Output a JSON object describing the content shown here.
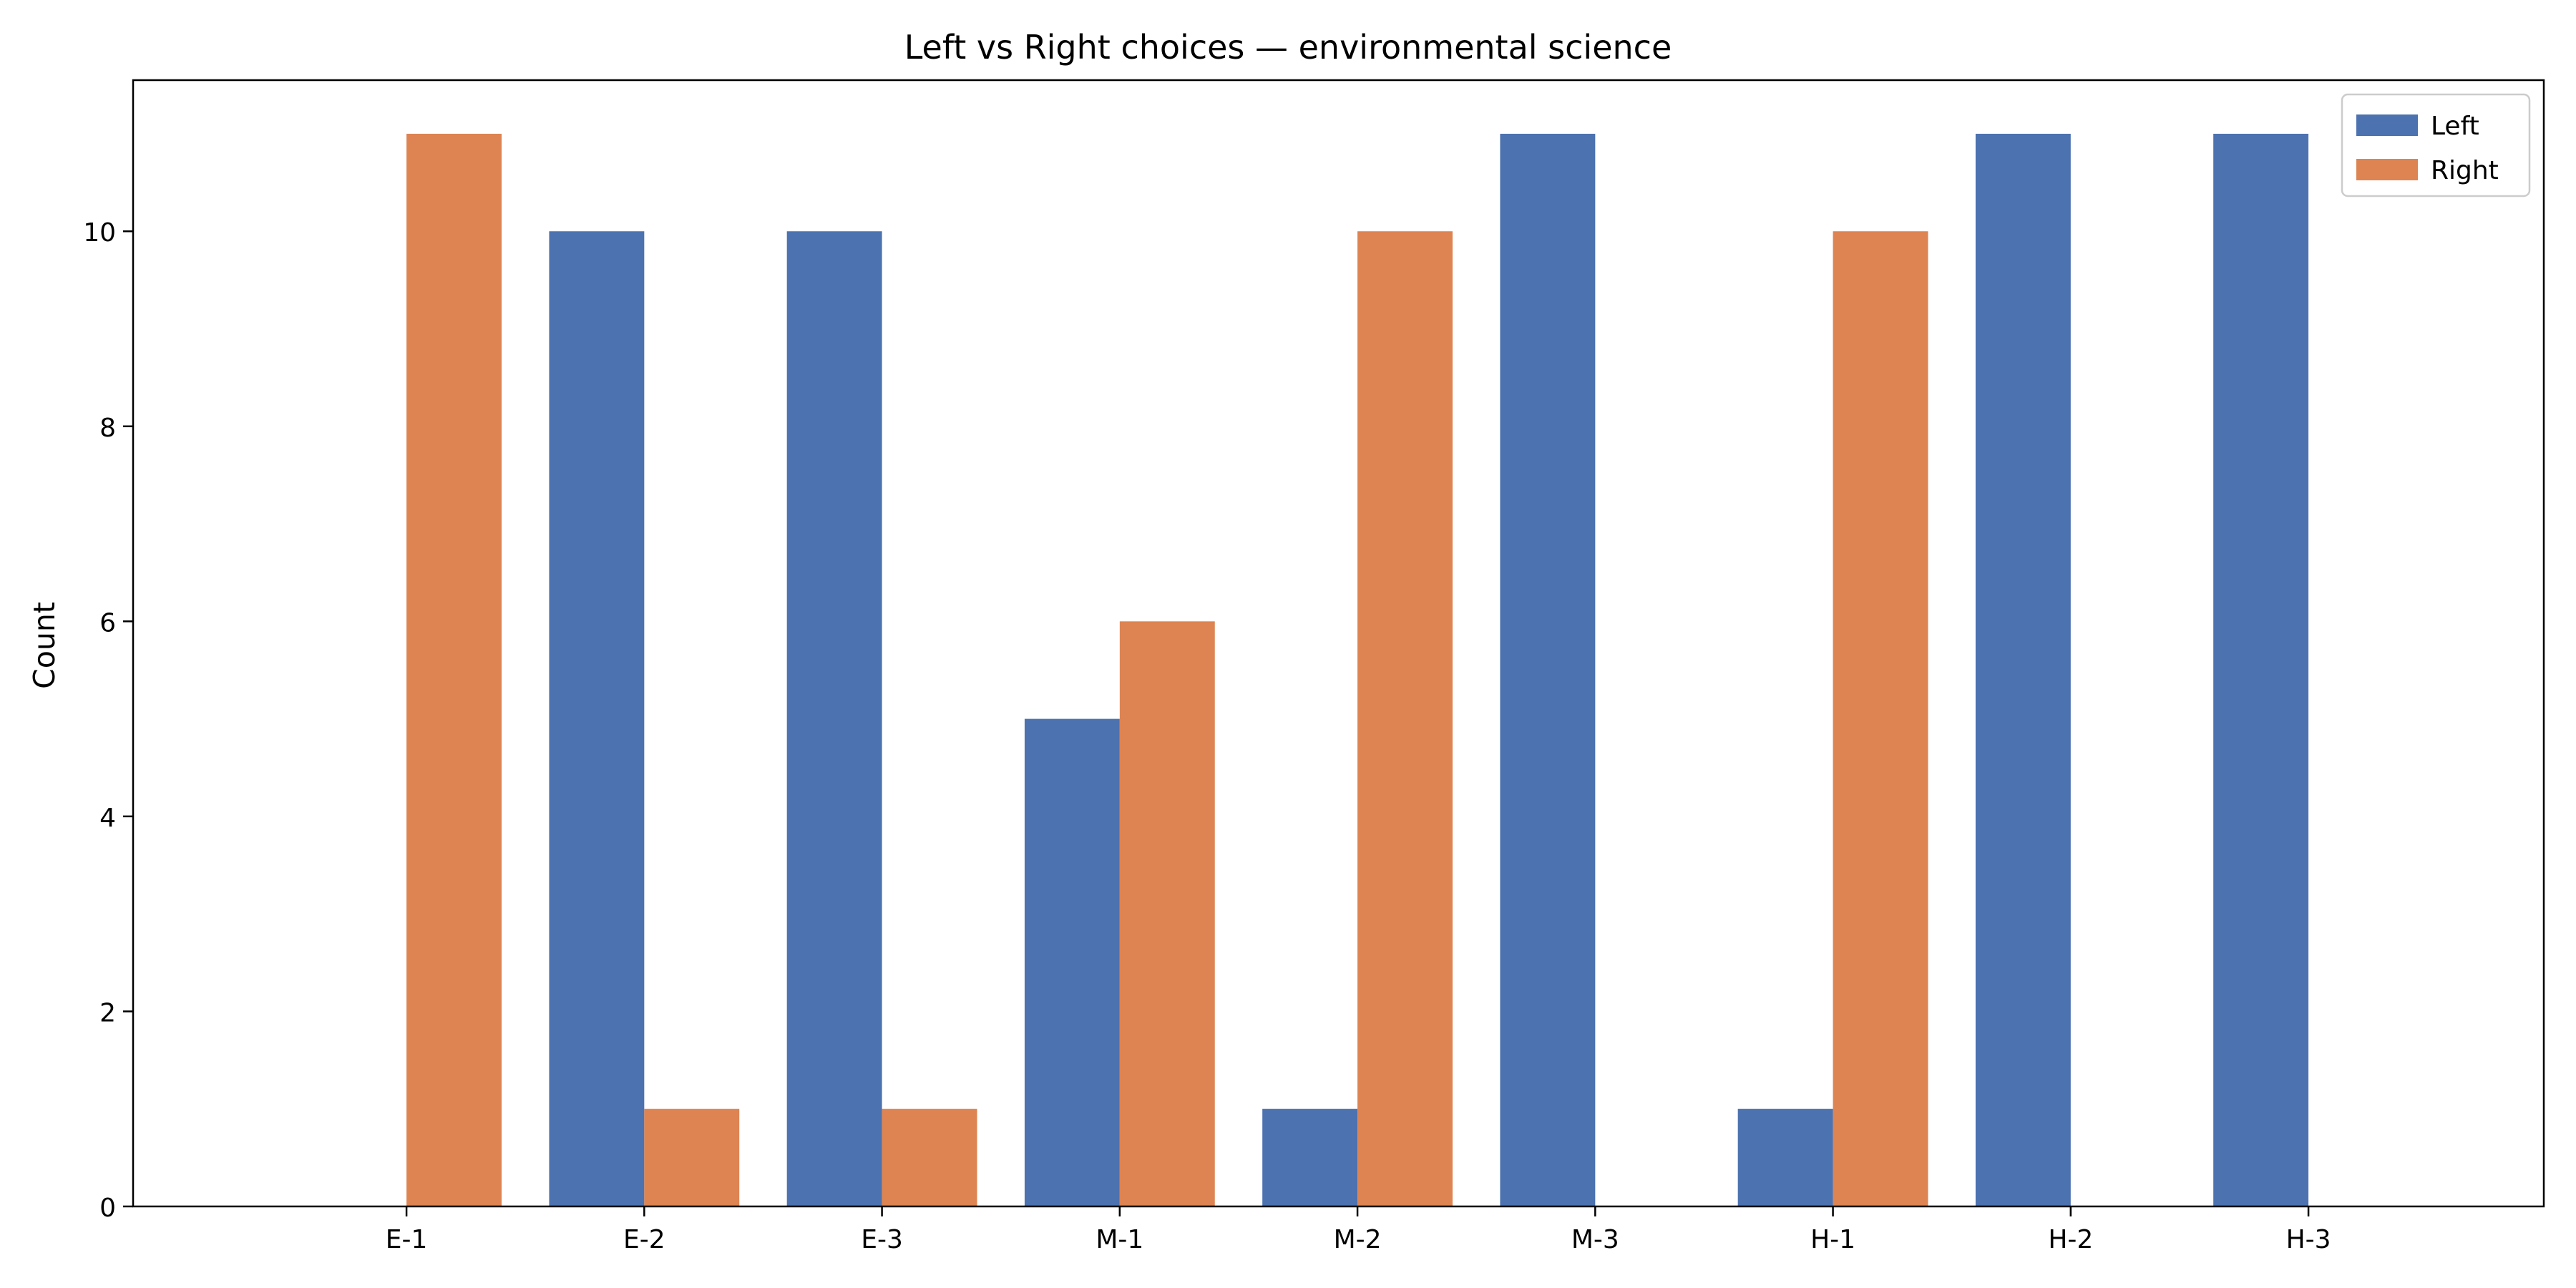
{
  "chart_data": {
    "type": "bar",
    "title": "Left vs Right choices — environmental science",
    "xlabel": "",
    "ylabel": "Count",
    "categories": [
      "E-1",
      "E-2",
      "E-3",
      "M-1",
      "M-2",
      "M-3",
      "H-1",
      "H-2",
      "H-3"
    ],
    "series": [
      {
        "name": "Left",
        "color": "#4c72b0",
        "values": [
          0,
          10,
          10,
          5,
          1,
          11,
          1,
          11,
          11
        ]
      },
      {
        "name": "Right",
        "color": "#dd8452",
        "values": [
          11,
          1,
          1,
          6,
          10,
          0,
          10,
          0,
          0
        ]
      }
    ],
    "ylim": [
      0,
      11.55
    ],
    "yticks": [
      0,
      2,
      4,
      6,
      8,
      10
    ],
    "grid": false,
    "legend_position": "top-right"
  }
}
